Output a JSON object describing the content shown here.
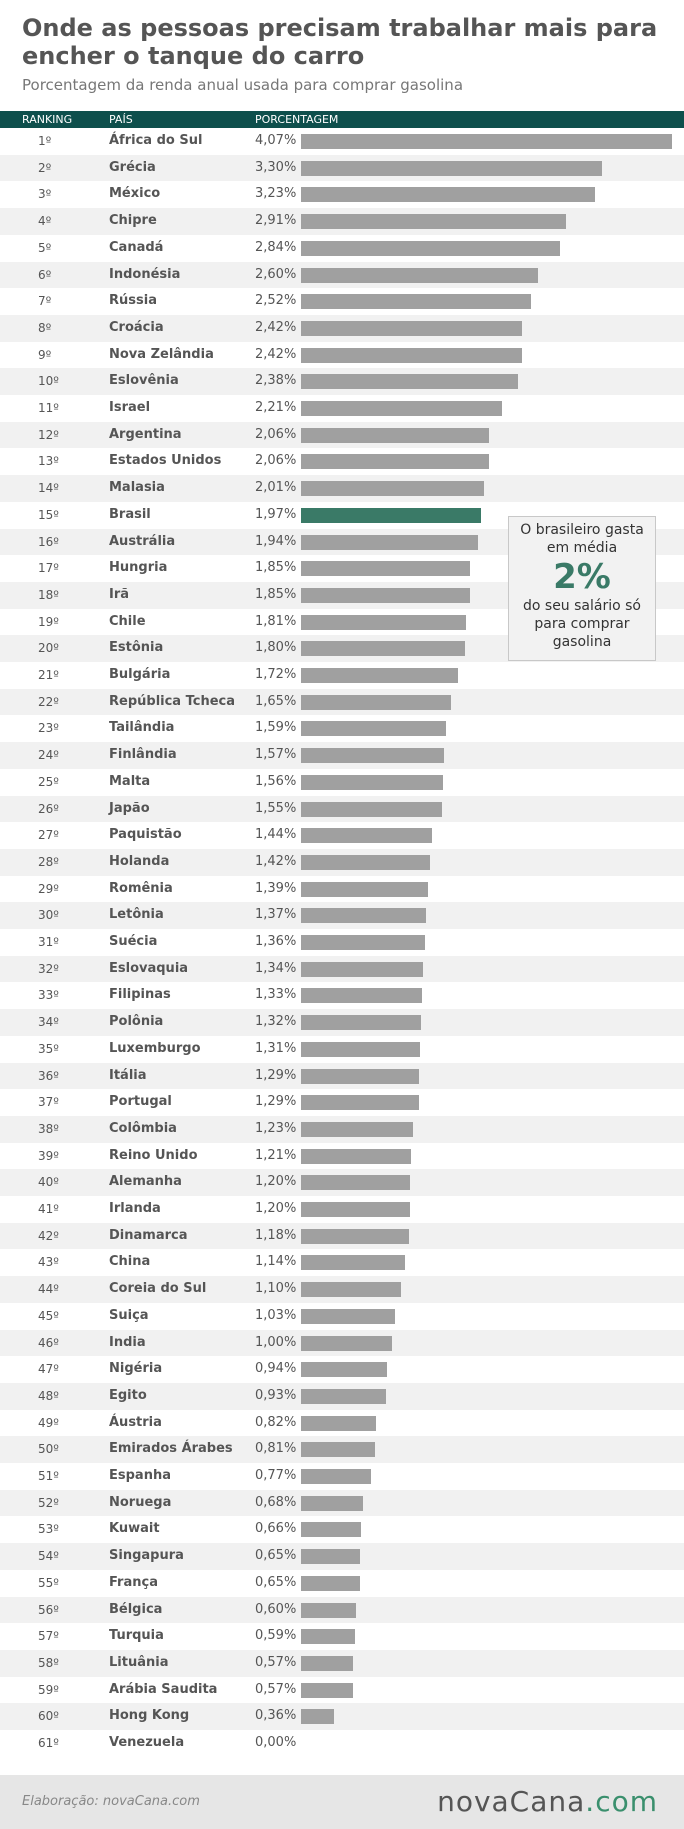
{
  "header": {
    "title": "Onde as pessoas precisam trabalhar mais para encher o tanque do carro",
    "subtitle": "Porcentagem da renda anual usada para comprar gasolina"
  },
  "columns": {
    "ranking": "RANKING",
    "country": "PAÍS",
    "percent": "PORCENTAGEM"
  },
  "callout": {
    "line1": "O brasileiro gasta",
    "line2": "em média",
    "big": "2%",
    "line3": "do seu salário só",
    "line4": "para comprar",
    "line5": "gasolina"
  },
  "footer": {
    "credit": "Elaboração: novaCana.com",
    "brand_main": "novaCana",
    "brand_suffix": ".com"
  },
  "colors": {
    "header_bg": "#0e4f4c",
    "bar": "#a0a0a0",
    "highlight_bar": "#3a7a67",
    "accent": "#3a8f6d"
  },
  "chart_data": {
    "type": "bar",
    "orientation": "horizontal",
    "title": "Onde as pessoas precisam trabalhar mais para encher o tanque do carro",
    "subtitle": "Porcentagem da renda anual usada para comprar gasolina",
    "highlight": "Brasil",
    "xlim": [
      0,
      4.07
    ],
    "rows": [
      {
        "rank": "1º",
        "country": "África do Sul",
        "label": "4,07%",
        "value": 4.07
      },
      {
        "rank": "2º",
        "country": "Grécia",
        "label": "3,30%",
        "value": 3.3
      },
      {
        "rank": "3º",
        "country": "México",
        "label": "3,23%",
        "value": 3.23
      },
      {
        "rank": "4º",
        "country": "Chipre",
        "label": "2,91%",
        "value": 2.91
      },
      {
        "rank": "5º",
        "country": "Canadá",
        "label": "2,84%",
        "value": 2.84
      },
      {
        "rank": "6º",
        "country": "Indonésia",
        "label": "2,60%",
        "value": 2.6
      },
      {
        "rank": "7º",
        "country": "Rússia",
        "label": "2,52%",
        "value": 2.52
      },
      {
        "rank": "8º",
        "country": "Croácia",
        "label": "2,42%",
        "value": 2.42
      },
      {
        "rank": "9º",
        "country": "Nova Zelândia",
        "label": "2,42%",
        "value": 2.42
      },
      {
        "rank": "10º",
        "country": "Eslovênia",
        "label": "2,38%",
        "value": 2.38
      },
      {
        "rank": "11º",
        "country": "Israel",
        "label": "2,21%",
        "value": 2.21
      },
      {
        "rank": "12º",
        "country": "Argentina",
        "label": "2,06%",
        "value": 2.06
      },
      {
        "rank": "13º",
        "country": "Estados Unidos",
        "label": "2,06%",
        "value": 2.06
      },
      {
        "rank": "14º",
        "country": "Malasia",
        "label": "2,01%",
        "value": 2.01
      },
      {
        "rank": "15º",
        "country": "Brasil",
        "label": "1,97%",
        "value": 1.97
      },
      {
        "rank": "16º",
        "country": "Austrália",
        "label": "1,94%",
        "value": 1.94
      },
      {
        "rank": "17º",
        "country": "Hungria",
        "label": "1,85%",
        "value": 1.85
      },
      {
        "rank": "18º",
        "country": "Irã",
        "label": "1,85%",
        "value": 1.85
      },
      {
        "rank": "19º",
        "country": "Chile",
        "label": "1,81%",
        "value": 1.81
      },
      {
        "rank": "20º",
        "country": "Estônia",
        "label": "1,80%",
        "value": 1.8
      },
      {
        "rank": "21º",
        "country": "Bulgária",
        "label": "1,72%",
        "value": 1.72
      },
      {
        "rank": "22º",
        "country": "República Tcheca",
        "label": "1,65%",
        "value": 1.65
      },
      {
        "rank": "23º",
        "country": "Tailândia",
        "label": "1,59%",
        "value": 1.59
      },
      {
        "rank": "24º",
        "country": "Finlândia",
        "label": "1,57%",
        "value": 1.57
      },
      {
        "rank": "25º",
        "country": "Malta",
        "label": "1,56%",
        "value": 1.56
      },
      {
        "rank": "26º",
        "country": "Japão",
        "label": "1,55%",
        "value": 1.55
      },
      {
        "rank": "27º",
        "country": "Paquistão",
        "label": "1,44%",
        "value": 1.44
      },
      {
        "rank": "28º",
        "country": "Holanda",
        "label": "1,42%",
        "value": 1.42
      },
      {
        "rank": "29º",
        "country": "Romênia",
        "label": "1,39%",
        "value": 1.39
      },
      {
        "rank": "30º",
        "country": "Letônia",
        "label": "1,37%",
        "value": 1.37
      },
      {
        "rank": "31º",
        "country": "Suécia",
        "label": "1,36%",
        "value": 1.36
      },
      {
        "rank": "32º",
        "country": "Eslovaquia",
        "label": "1,34%",
        "value": 1.34
      },
      {
        "rank": "33º",
        "country": "Filipinas",
        "label": "1,33%",
        "value": 1.33
      },
      {
        "rank": "34º",
        "country": "Polônia",
        "label": "1,32%",
        "value": 1.32
      },
      {
        "rank": "35º",
        "country": "Luxemburgo",
        "label": "1,31%",
        "value": 1.31
      },
      {
        "rank": "36º",
        "country": "Itália",
        "label": "1,29%",
        "value": 1.29
      },
      {
        "rank": "37º",
        "country": "Portugal",
        "label": "1,29%",
        "value": 1.29
      },
      {
        "rank": "38º",
        "country": "Colômbia",
        "label": "1,23%",
        "value": 1.23
      },
      {
        "rank": "39º",
        "country": "Reino Unido",
        "label": "1,21%",
        "value": 1.21
      },
      {
        "rank": "40º",
        "country": "Alemanha",
        "label": "1,20%",
        "value": 1.2
      },
      {
        "rank": "41º",
        "country": "Irlanda",
        "label": "1,20%",
        "value": 1.2
      },
      {
        "rank": "42º",
        "country": "Dinamarca",
        "label": "1,18%",
        "value": 1.18
      },
      {
        "rank": "43º",
        "country": "China",
        "label": "1,14%",
        "value": 1.14
      },
      {
        "rank": "44º",
        "country": "Coreia do Sul",
        "label": "1,10%",
        "value": 1.1
      },
      {
        "rank": "45º",
        "country": "Suiça",
        "label": "1,03%",
        "value": 1.03
      },
      {
        "rank": "46º",
        "country": "India",
        "label": "1,00%",
        "value": 1.0
      },
      {
        "rank": "47º",
        "country": "Nigéria",
        "label": "0,94%",
        "value": 0.94
      },
      {
        "rank": "48º",
        "country": "Egito",
        "label": "0,93%",
        "value": 0.93
      },
      {
        "rank": "49º",
        "country": "Áustria",
        "label": "0,82%",
        "value": 0.82
      },
      {
        "rank": "50º",
        "country": "Emirados Árabes",
        "label": "0,81%",
        "value": 0.81
      },
      {
        "rank": "51º",
        "country": "Espanha",
        "label": "0,77%",
        "value": 0.77
      },
      {
        "rank": "52º",
        "country": "Noruega",
        "label": "0,68%",
        "value": 0.68
      },
      {
        "rank": "53º",
        "country": "Kuwait",
        "label": "0,66%",
        "value": 0.66
      },
      {
        "rank": "54º",
        "country": "Singapura",
        "label": "0,65%",
        "value": 0.65
      },
      {
        "rank": "55º",
        "country": "França",
        "label": "0,65%",
        "value": 0.65
      },
      {
        "rank": "56º",
        "country": "Bélgica",
        "label": "0,60%",
        "value": 0.6
      },
      {
        "rank": "57º",
        "country": "Turquia",
        "label": "0,59%",
        "value": 0.59
      },
      {
        "rank": "58º",
        "country": "Lituânia",
        "label": "0,57%",
        "value": 0.57
      },
      {
        "rank": "59º",
        "country": "Arábia Saudita",
        "label": "0,57%",
        "value": 0.57
      },
      {
        "rank": "60º",
        "country": "Hong Kong",
        "label": "0,36%",
        "value": 0.36
      },
      {
        "rank": "61º",
        "country": "Venezuela",
        "label": "0,00%",
        "value": 0.0
      }
    ]
  }
}
